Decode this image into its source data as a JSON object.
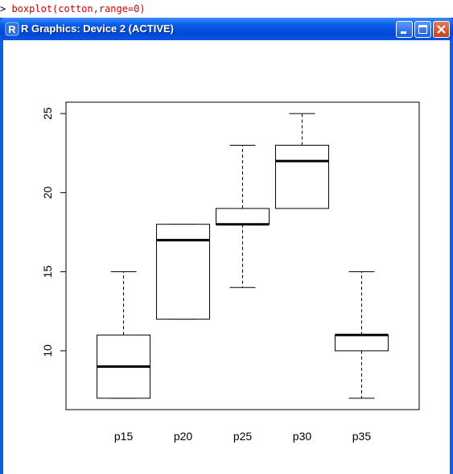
{
  "console": {
    "prompt": ">",
    "command": "boxplot(cotton,range=0)"
  },
  "window": {
    "title": "R Graphics: Device 2 (ACTIVE)",
    "app_icon": "R"
  },
  "colors": {
    "titlebar": "#0a5de6",
    "console_command": "#cc0000",
    "close_button": "#d9532c"
  },
  "chart_data": {
    "type": "boxplot",
    "categories": [
      "p15",
      "p20",
      "p25",
      "p30",
      "p35"
    ],
    "boxes": [
      {
        "name": "p15",
        "min": 7,
        "q1": 7,
        "median": 9,
        "q3": 11,
        "max": 15
      },
      {
        "name": "p20",
        "min": 12,
        "q1": 12,
        "median": 17,
        "q3": 18,
        "max": 18
      },
      {
        "name": "p25",
        "min": 14,
        "q1": 18,
        "median": 18,
        "q3": 19,
        "max": 23
      },
      {
        "name": "p30",
        "min": 19,
        "q1": 19,
        "median": 22,
        "q3": 23,
        "max": 25
      },
      {
        "name": "p35",
        "min": 7,
        "q1": 10,
        "median": 11,
        "q3": 11,
        "max": 15
      }
    ],
    "yticks": [
      "10",
      "15",
      "20",
      "25"
    ],
    "ylim": [
      6.28,
      25.72
    ],
    "title": "",
    "xlabel": "",
    "ylabel": "",
    "grid": false
  }
}
